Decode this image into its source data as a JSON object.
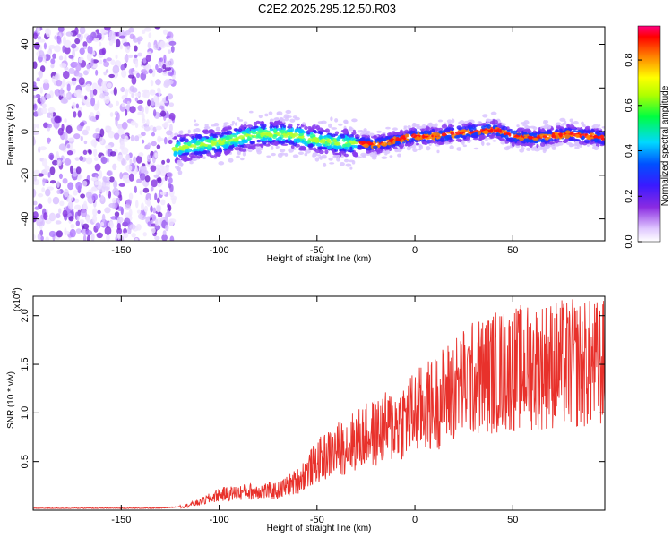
{
  "title": "C2E2.2025.295.12.50.R03",
  "colors": {
    "snr_line": "#e8312b",
    "frame": "#000000"
  },
  "chart_data": [
    {
      "type": "heatmap",
      "name": "spectrogram",
      "xlabel": "Height of straight line (km)",
      "ylabel": "Frequency (Hz)",
      "xlim": [
        -195,
        97
      ],
      "ylim": [
        -50,
        48
      ],
      "xticks": [
        -150,
        -100,
        -50,
        0,
        50
      ],
      "yticks": [
        -40,
        -20,
        0,
        20,
        40
      ],
      "noise_region_x": [
        -195,
        -123
      ],
      "signal_start_x": -123,
      "ridge": [
        {
          "x": -122,
          "y": -8
        },
        {
          "x": -110,
          "y": -6
        },
        {
          "x": -100,
          "y": -5
        },
        {
          "x": -90,
          "y": -3
        },
        {
          "x": -80,
          "y": -1
        },
        {
          "x": -70,
          "y": -1
        },
        {
          "x": -60,
          "y": -2
        },
        {
          "x": -50,
          "y": -4
        },
        {
          "x": -40,
          "y": -5
        },
        {
          "x": -30,
          "y": -5
        },
        {
          "x": -20,
          "y": -6
        },
        {
          "x": -10,
          "y": -4
        },
        {
          "x": 0,
          "y": -2
        },
        {
          "x": 10,
          "y": -2
        },
        {
          "x": 20,
          "y": -1
        },
        {
          "x": 30,
          "y": 0
        },
        {
          "x": 40,
          "y": 1
        },
        {
          "x": 50,
          "y": -2
        },
        {
          "x": 60,
          "y": -3
        },
        {
          "x": 70,
          "y": -2
        },
        {
          "x": 80,
          "y": -1
        },
        {
          "x": 90,
          "y": -2
        },
        {
          "x": 97,
          "y": -3
        }
      ],
      "colorbar": {
        "label": "Normalized spectral amplitude",
        "range": [
          0.0,
          0.95
        ],
        "ticks": [
          "0.0",
          "0.2",
          "0.4",
          "0.6",
          "0.8"
        ],
        "tick_values": [
          0.0,
          0.2,
          0.4,
          0.6,
          0.8
        ]
      }
    },
    {
      "type": "line",
      "name": "snr",
      "xlabel": "Height of straight line (km)",
      "ylabel": "SNR (10 * v/v)",
      "y_multiplier": "(x10",
      "y_multiplier_exp": "4",
      "y_multiplier_close": ")",
      "xlim": [
        -195,
        97
      ],
      "ylim": [
        0,
        2.2
      ],
      "xticks": [
        -150,
        -100,
        -50,
        0,
        50
      ],
      "yticks": [
        0.5,
        1.0,
        1.5,
        2.0
      ],
      "ytick_labels": [
        "0.5",
        "1.0",
        "1.5",
        "2.0"
      ],
      "envelope": [
        {
          "x": -195,
          "y": 0.02
        },
        {
          "x": -130,
          "y": 0.02
        },
        {
          "x": -118,
          "y": 0.04
        },
        {
          "x": -110,
          "y": 0.08
        },
        {
          "x": -100,
          "y": 0.16
        },
        {
          "x": -90,
          "y": 0.18
        },
        {
          "x": -80,
          "y": 0.2
        },
        {
          "x": -70,
          "y": 0.2
        },
        {
          "x": -60,
          "y": 0.3
        },
        {
          "x": -50,
          "y": 0.5
        },
        {
          "x": -40,
          "y": 0.62
        },
        {
          "x": -30,
          "y": 0.72
        },
        {
          "x": -20,
          "y": 0.8
        },
        {
          "x": -10,
          "y": 0.88
        },
        {
          "x": 0,
          "y": 1.0
        },
        {
          "x": 10,
          "y": 1.1
        },
        {
          "x": 20,
          "y": 1.25
        },
        {
          "x": 30,
          "y": 1.35
        },
        {
          "x": 40,
          "y": 1.42
        },
        {
          "x": 50,
          "y": 1.45
        },
        {
          "x": 60,
          "y": 1.48
        },
        {
          "x": 70,
          "y": 1.5
        },
        {
          "x": 80,
          "y": 1.5
        },
        {
          "x": 97,
          "y": 1.5
        }
      ]
    }
  ]
}
